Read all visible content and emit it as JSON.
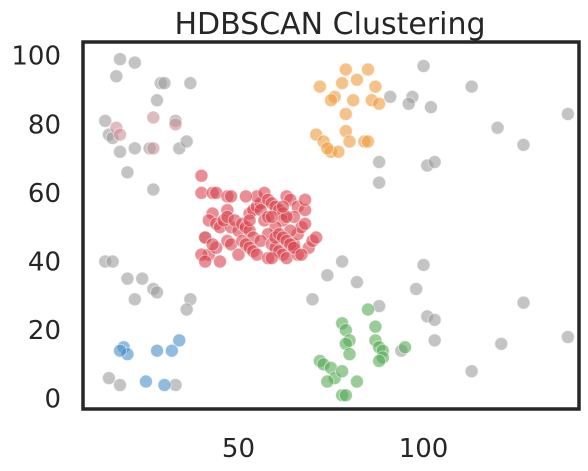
{
  "chart_data": {
    "type": "scatter",
    "title": "HDBSCAN Clustering",
    "xlabel": "",
    "ylabel": "",
    "xlim": [
      8,
      142
    ],
    "ylim": [
      -3,
      104
    ],
    "x_ticks": [
      50,
      100
    ],
    "y_ticks": [
      0,
      20,
      40,
      60,
      80,
      100
    ],
    "grid": false,
    "legend": "none",
    "series": [
      {
        "color": "#9c9c9c",
        "points": [
          [
            18,
            99
          ],
          [
            22,
            98
          ],
          [
            17,
            94
          ],
          [
            29,
            92
          ],
          [
            30,
            92
          ],
          [
            37,
            92
          ],
          [
            28,
            87
          ],
          [
            14,
            81
          ],
          [
            33,
            81
          ],
          [
            15,
            77
          ],
          [
            16,
            76
          ],
          [
            18,
            72
          ],
          [
            22,
            73
          ],
          [
            26,
            73
          ],
          [
            34,
            73
          ],
          [
            36,
            75
          ],
          [
            20,
            66
          ],
          [
            27,
            61
          ],
          [
            14,
            40
          ],
          [
            16,
            40
          ],
          [
            20,
            35
          ],
          [
            24,
            35
          ],
          [
            27,
            32
          ],
          [
            28,
            31
          ],
          [
            22,
            29
          ],
          [
            37,
            29
          ],
          [
            36,
            26
          ],
          [
            15,
            6
          ],
          [
            18,
            4
          ],
          [
            33,
            4
          ],
          [
            100,
            97
          ],
          [
            91,
            88
          ],
          [
            97,
            88
          ],
          [
            96,
            86
          ],
          [
            102,
            85
          ],
          [
            113,
            91
          ],
          [
            88,
            69
          ],
          [
            101,
            68
          ],
          [
            103,
            69
          ],
          [
            88,
            63
          ],
          [
            120,
            79
          ],
          [
            127,
            74
          ],
          [
            139,
            83
          ],
          [
            78,
            40
          ],
          [
            100,
            39
          ],
          [
            74,
            36
          ],
          [
            82,
            34
          ],
          [
            70,
            29
          ],
          [
            98,
            32
          ],
          [
            101,
            24
          ],
          [
            103,
            23
          ],
          [
            88,
            27
          ],
          [
            94,
            14
          ],
          [
            103,
            17
          ],
          [
            127,
            28
          ],
          [
            121,
            16
          ],
          [
            139,
            18
          ],
          [
            113,
            8
          ]
        ]
      },
      {
        "color": "#c98f95",
        "points": [
          [
            17,
            79
          ],
          [
            18,
            77
          ],
          [
            27,
            82
          ],
          [
            33,
            80
          ],
          [
            27,
            73
          ],
          [
            41,
            47
          ]
        ]
      },
      {
        "color": "#ee9b3a",
        "points": [
          [
            72,
            91
          ],
          [
            76,
            88
          ],
          [
            78,
            92
          ],
          [
            79,
            96
          ],
          [
            81,
            87
          ],
          [
            82,
            93
          ],
          [
            85,
            96
          ],
          [
            86,
            87
          ],
          [
            87,
            91
          ],
          [
            88,
            86
          ],
          [
            75,
            87
          ],
          [
            79,
            83
          ],
          [
            71,
            77
          ],
          [
            73,
            75
          ],
          [
            75,
            72
          ],
          [
            77,
            72
          ],
          [
            79,
            78
          ],
          [
            80,
            75
          ],
          [
            84,
            75
          ],
          [
            85,
            75
          ],
          [
            74,
            73
          ]
        ]
      },
      {
        "color": "#d9424c",
        "points": [
          [
            40,
            65
          ],
          [
            40,
            60
          ],
          [
            43,
            60
          ],
          [
            44,
            60
          ],
          [
            47,
            59
          ],
          [
            48,
            59
          ],
          [
            47,
            55
          ],
          [
            43,
            54
          ],
          [
            42,
            52
          ],
          [
            44,
            51
          ],
          [
            45,
            50
          ],
          [
            48,
            50
          ],
          [
            50,
            49
          ],
          [
            41,
            47
          ],
          [
            42,
            42
          ],
          [
            44,
            44
          ],
          [
            47,
            46
          ],
          [
            48,
            45
          ],
          [
            50,
            42
          ],
          [
            40,
            42
          ],
          [
            41,
            40
          ],
          [
            45,
            40
          ],
          [
            43,
            45
          ],
          [
            46,
            52
          ],
          [
            47,
            53
          ],
          [
            49,
            52
          ],
          [
            51,
            51
          ],
          [
            52,
            50
          ],
          [
            53,
            49
          ],
          [
            54,
            47
          ],
          [
            51,
            46
          ],
          [
            52,
            45
          ],
          [
            53,
            44
          ],
          [
            54,
            43
          ],
          [
            55,
            42
          ],
          [
            53,
            54
          ],
          [
            54,
            55
          ],
          [
            55,
            56
          ],
          [
            56,
            57
          ],
          [
            55,
            59
          ],
          [
            57,
            60
          ],
          [
            58,
            58
          ],
          [
            59,
            57
          ],
          [
            60,
            56
          ],
          [
            61,
            55
          ],
          [
            62,
            54
          ],
          [
            63,
            59
          ],
          [
            64,
            58
          ],
          [
            66,
            56
          ],
          [
            68,
            55
          ],
          [
            62,
            52
          ],
          [
            60,
            50
          ],
          [
            58,
            48
          ],
          [
            56,
            46
          ],
          [
            59,
            45
          ],
          [
            60,
            44
          ],
          [
            61,
            43
          ],
          [
            62,
            42
          ],
          [
            63,
            41
          ],
          [
            66,
            42
          ],
          [
            65,
            45
          ],
          [
            66,
            48
          ],
          [
            67,
            50
          ],
          [
            68,
            51
          ],
          [
            69,
            44
          ],
          [
            70,
            46
          ],
          [
            71,
            47
          ],
          [
            64,
            49
          ],
          [
            58,
            41
          ],
          [
            59,
            41
          ],
          [
            65,
            53
          ],
          [
            53,
            52
          ],
          [
            52,
            59
          ],
          [
            56,
            55
          ],
          [
            57,
            52
          ],
          [
            58,
            53
          ],
          [
            59,
            53
          ],
          [
            60,
            47
          ],
          [
            61,
            48
          ],
          [
            62,
            47
          ],
          [
            63,
            46
          ],
          [
            64,
            45
          ],
          [
            65,
            44
          ],
          [
            63,
            53
          ],
          [
            62,
            56
          ],
          [
            68,
            58
          ],
          [
            67,
            42
          ]
        ]
      },
      {
        "color": "#4a90c8",
        "points": [
          [
            19,
            15
          ],
          [
            20,
            13
          ],
          [
            18,
            14
          ],
          [
            28,
            14
          ],
          [
            32,
            14
          ],
          [
            34,
            17
          ],
          [
            25,
            5
          ],
          [
            30,
            4
          ]
        ]
      },
      {
        "color": "#55aa55",
        "points": [
          [
            78,
            22
          ],
          [
            79,
            20
          ],
          [
            80,
            17
          ],
          [
            79,
            16
          ],
          [
            80,
            13
          ],
          [
            85,
            26
          ],
          [
            87,
            21
          ],
          [
            87,
            17
          ],
          [
            88,
            15
          ],
          [
            89,
            14
          ],
          [
            89,
            12
          ],
          [
            88,
            11
          ],
          [
            95,
            15
          ],
          [
            72,
            11
          ],
          [
            73,
            10
          ],
          [
            75,
            9
          ],
          [
            76,
            6
          ],
          [
            78,
            8
          ],
          [
            82,
            5
          ],
          [
            74,
            5
          ],
          [
            78,
            1
          ],
          [
            79,
            1
          ]
        ]
      }
    ]
  }
}
